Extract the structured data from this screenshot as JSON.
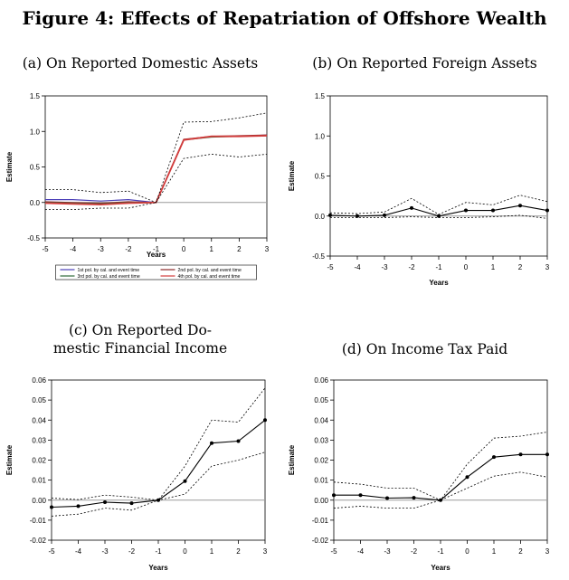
{
  "figure_title": "Figure 4: Effects of Repatriation of Offshore Wealth",
  "chart_data": [
    {
      "id": "a",
      "type": "line",
      "title": "(a) On Reported Domestic Assets",
      "xlabel": "Years",
      "ylabel": "Estimate",
      "x": [
        -5,
        -4,
        -3,
        -2,
        -1,
        0,
        1,
        2,
        3
      ],
      "xticks": [
        "-5",
        "-4",
        "-3",
        "-2",
        "-1",
        "0",
        "1",
        "2",
        "3"
      ],
      "yticks": [
        "-0.5",
        "0.0",
        "0.5",
        "1.0",
        "1.5"
      ],
      "ylim": [
        -0.5,
        1.5
      ],
      "zero_line": true,
      "series": [
        {
          "name": "1st pol. by cal. and event time",
          "color": "#4b3fb8",
          "width": 1.2,
          "dash": "",
          "values": [
            0.04,
            0.04,
            0.02,
            0.04,
            0.0,
            0.88,
            0.93,
            0.93,
            0.95
          ]
        },
        {
          "name": "2nd pol. by cal. and event time",
          "color": "#8b2a2a",
          "width": 1.2,
          "dash": "",
          "values": [
            0.01,
            0.0,
            -0.01,
            0.01,
            0.0,
            0.89,
            0.93,
            0.94,
            0.95
          ]
        },
        {
          "name": "3rd pol. by cal. and event time",
          "color": "#2e6b3a",
          "width": 1.2,
          "dash": "",
          "values": [
            0.0,
            -0.01,
            -0.02,
            0.0,
            0.0,
            0.88,
            0.92,
            0.93,
            0.94
          ]
        },
        {
          "name": "4th pol. by cal. and event time",
          "color": "#d23c3c",
          "width": 1.8,
          "dash": "",
          "values": [
            -0.01,
            -0.02,
            -0.03,
            -0.01,
            0.0,
            0.88,
            0.93,
            0.93,
            0.94
          ]
        },
        {
          "name": "upper ci",
          "color": "#000000",
          "width": 0.8,
          "dash": "2,2",
          "values": [
            0.18,
            0.18,
            0.14,
            0.16,
            0.0,
            1.13,
            1.14,
            1.19,
            1.26
          ]
        },
        {
          "name": "lower ci",
          "color": "#000000",
          "width": 0.8,
          "dash": "2,2",
          "values": [
            -0.1,
            -0.1,
            -0.08,
            -0.08,
            0.0,
            0.62,
            0.68,
            0.64,
            0.68
          ]
        }
      ],
      "legend": {
        "placement": "bottom",
        "entries": [
          {
            "label": "1st pol. by cal. and event time",
            "color": "#4b3fb8"
          },
          {
            "label": "2nd pol. by cal. and event time",
            "color": "#8b2a2a"
          },
          {
            "label": "3rd pol. by cal. and event time",
            "color": "#2e6b3a"
          },
          {
            "label": "4th pol. by cal. and event time",
            "color": "#d23c3c"
          }
        ]
      }
    },
    {
      "id": "b",
      "type": "line",
      "title": "(b) On Reported Foreign Assets",
      "xlabel": "Years",
      "ylabel": "Estimate",
      "x": [
        -5,
        -4,
        -3,
        -2,
        -1,
        0,
        1,
        2,
        3
      ],
      "xticks": [
        "-5",
        "-4",
        "-3",
        "-2",
        "-1",
        "0",
        "1",
        "2",
        "3"
      ],
      "yticks": [
        "-0.5",
        "0.0",
        "0.5",
        "1.0",
        "1.5"
      ],
      "ylim": [
        -0.5,
        1.5
      ],
      "zero_line": true,
      "series": [
        {
          "name": "estimate",
          "color": "#000000",
          "width": 1.1,
          "dash": "",
          "markers": true,
          "values": [
            0.01,
            0.0,
            0.01,
            0.1,
            0.0,
            0.07,
            0.07,
            0.13,
            0.07
          ]
        },
        {
          "name": "upper ci",
          "color": "#000000",
          "width": 0.8,
          "dash": "2,2",
          "values": [
            0.04,
            0.03,
            0.05,
            0.22,
            0.02,
            0.17,
            0.14,
            0.26,
            0.18
          ]
        },
        {
          "name": "lower ci",
          "color": "#000000",
          "width": 0.8,
          "dash": "2,2",
          "values": [
            -0.02,
            -0.02,
            -0.02,
            -0.01,
            -0.02,
            -0.02,
            -0.01,
            0.01,
            -0.03
          ]
        }
      ]
    },
    {
      "id": "c",
      "type": "line",
      "title": "(c) On Reported Do-\nmestic Financial Income",
      "xlabel": "Years",
      "ylabel": "Estimate",
      "x": [
        -5,
        -4,
        -3,
        -2,
        -1,
        0,
        1,
        2,
        3
      ],
      "xticks": [
        "-5",
        "-4",
        "-3",
        "-2",
        "-1",
        "0",
        "1",
        "2",
        "3"
      ],
      "yticks": [
        "-0.02",
        "-0.01",
        "0.00",
        "0.01",
        "0.02",
        "0.03",
        "0.04",
        "0.05",
        "0.06"
      ],
      "ylim": [
        -0.02,
        0.06
      ],
      "zero_line": true,
      "series": [
        {
          "name": "estimate",
          "color": "#000000",
          "width": 1.1,
          "dash": "",
          "markers": true,
          "values": [
            -0.0035,
            -0.003,
            -0.001,
            -0.0015,
            0.0,
            0.0095,
            0.0285,
            0.0295,
            0.04
          ]
        },
        {
          "name": "upper ci",
          "color": "#000000",
          "width": 0.8,
          "dash": "2,2",
          "values": [
            0.001,
            0.0003,
            0.0025,
            0.0015,
            0.0,
            0.017,
            0.04,
            0.039,
            0.056
          ]
        },
        {
          "name": "lower ci",
          "color": "#000000",
          "width": 0.8,
          "dash": "2,2",
          "values": [
            -0.008,
            -0.007,
            -0.004,
            -0.005,
            0.0,
            0.003,
            0.017,
            0.02,
            0.024
          ]
        }
      ]
    },
    {
      "id": "d",
      "type": "line",
      "title": "(d) On Income Tax Paid",
      "xlabel": "Years",
      "ylabel": "Estimate",
      "x": [
        -5,
        -4,
        -3,
        -2,
        -1,
        0,
        1,
        2,
        3
      ],
      "xticks": [
        "-5",
        "-4",
        "-3",
        "-2",
        "-1",
        "0",
        "1",
        "2",
        "3"
      ],
      "yticks": [
        "-0.02",
        "-0.01",
        "0.00",
        "0.01",
        "0.02",
        "0.03",
        "0.04",
        "0.05",
        "0.06"
      ],
      "ylim": [
        -0.02,
        0.06
      ],
      "zero_line": true,
      "series": [
        {
          "name": "estimate",
          "color": "#000000",
          "width": 1.1,
          "dash": "",
          "markers": true,
          "values": [
            0.0025,
            0.0025,
            0.001,
            0.0012,
            0.0,
            0.0115,
            0.0215,
            0.0228,
            0.0228
          ]
        },
        {
          "name": "upper ci",
          "color": "#000000",
          "width": 0.8,
          "dash": "2,2",
          "values": [
            0.009,
            0.008,
            0.006,
            0.006,
            0.0,
            0.018,
            0.031,
            0.032,
            0.034
          ]
        },
        {
          "name": "lower ci",
          "color": "#000000",
          "width": 0.8,
          "dash": "2,2",
          "values": [
            -0.004,
            -0.003,
            -0.004,
            -0.004,
            0.0,
            0.006,
            0.012,
            0.014,
            0.0115
          ]
        }
      ]
    }
  ]
}
